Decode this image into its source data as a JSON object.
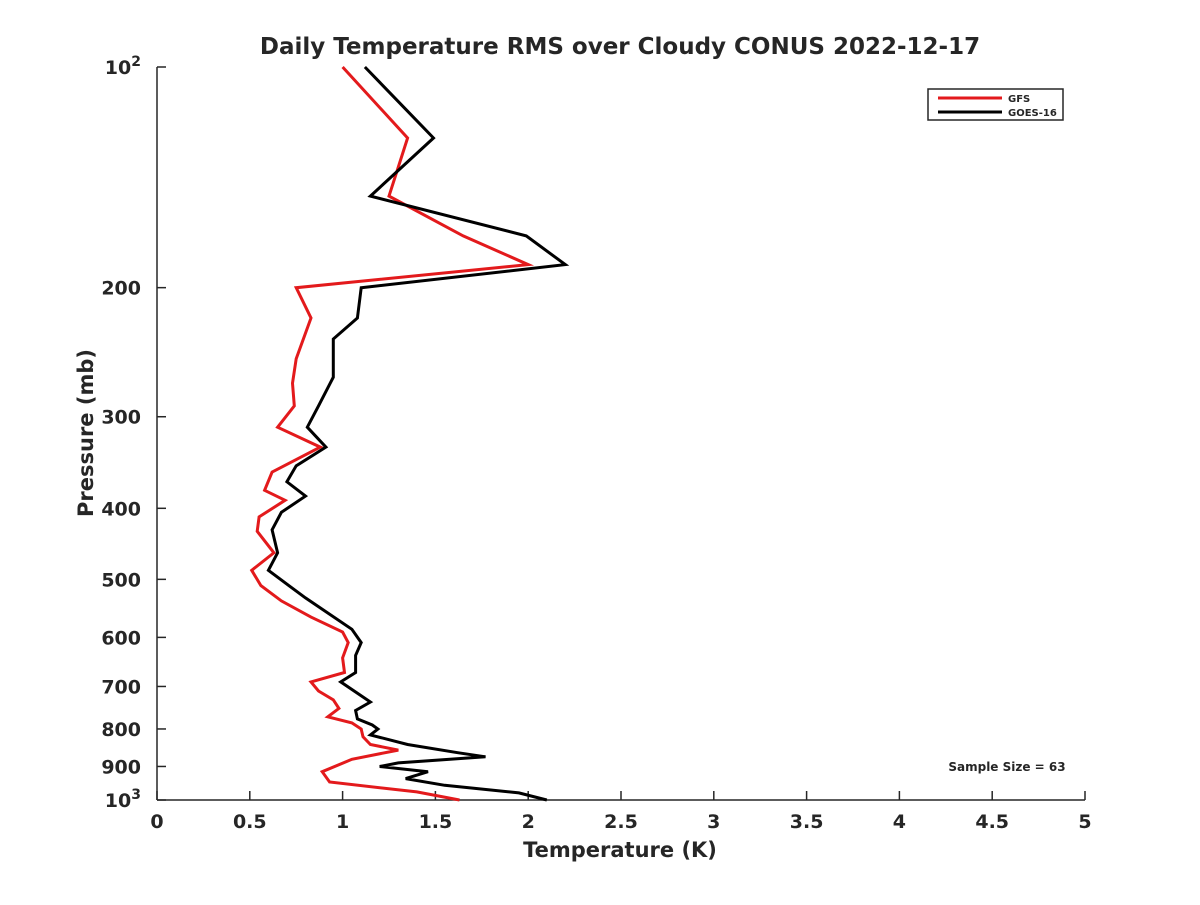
{
  "chart_data": {
    "type": "line",
    "title": "Daily Temperature RMS over Cloudy CONUS 2022-12-17",
    "xlabel": "Temperature (K)",
    "ylabel": "Pressure (mb)",
    "xlim": [
      0,
      5
    ],
    "ylim": [
      100,
      1000
    ],
    "y_scale": "log",
    "y_reversed": true,
    "x_ticks": [
      "0",
      "0.5",
      "1",
      "1.5",
      "2",
      "2.5",
      "3",
      "3.5",
      "4",
      "4.5",
      "5"
    ],
    "y_ticks": [
      {
        "value": 100,
        "base": "10",
        "exp": "2",
        "label": ""
      },
      {
        "value": 200,
        "label": "200"
      },
      {
        "value": 300,
        "label": "300"
      },
      {
        "value": 400,
        "label": "400"
      },
      {
        "value": 500,
        "label": "500"
      },
      {
        "value": 600,
        "label": "600"
      },
      {
        "value": 700,
        "label": "700"
      },
      {
        "value": 800,
        "label": "800"
      },
      {
        "value": 900,
        "label": "900"
      },
      {
        "value": 1000,
        "base": "10",
        "exp": "3",
        "label": ""
      }
    ],
    "grid": false,
    "legend_position": "top-right",
    "annotation": "Sample Size = 63",
    "series": [
      {
        "name": "GFS",
        "color": "#e31a1c",
        "points": [
          {
            "x": 1.0,
            "y": 100
          },
          {
            "x": 1.35,
            "y": 125
          },
          {
            "x": 1.25,
            "y": 150
          },
          {
            "x": 1.65,
            "y": 170
          },
          {
            "x": 2.0,
            "y": 186
          },
          {
            "x": 0.75,
            "y": 200
          },
          {
            "x": 0.83,
            "y": 220
          },
          {
            "x": 0.75,
            "y": 250
          },
          {
            "x": 0.73,
            "y": 270
          },
          {
            "x": 0.74,
            "y": 290
          },
          {
            "x": 0.65,
            "y": 310
          },
          {
            "x": 0.88,
            "y": 330
          },
          {
            "x": 0.62,
            "y": 357
          },
          {
            "x": 0.58,
            "y": 378
          },
          {
            "x": 0.69,
            "y": 390
          },
          {
            "x": 0.55,
            "y": 411
          },
          {
            "x": 0.54,
            "y": 430
          },
          {
            "x": 0.63,
            "y": 460
          },
          {
            "x": 0.51,
            "y": 486
          },
          {
            "x": 0.56,
            "y": 510
          },
          {
            "x": 0.67,
            "y": 535
          },
          {
            "x": 0.83,
            "y": 563
          },
          {
            "x": 1.0,
            "y": 590
          },
          {
            "x": 1.03,
            "y": 610
          },
          {
            "x": 1.0,
            "y": 640
          },
          {
            "x": 1.01,
            "y": 670
          },
          {
            "x": 0.83,
            "y": 690
          },
          {
            "x": 0.87,
            "y": 710
          },
          {
            "x": 0.95,
            "y": 730
          },
          {
            "x": 0.98,
            "y": 750
          },
          {
            "x": 0.92,
            "y": 770
          },
          {
            "x": 1.05,
            "y": 785
          },
          {
            "x": 1.1,
            "y": 800
          },
          {
            "x": 1.11,
            "y": 820
          },
          {
            "x": 1.15,
            "y": 840
          },
          {
            "x": 1.3,
            "y": 855
          },
          {
            "x": 1.05,
            "y": 880
          },
          {
            "x": 0.89,
            "y": 915
          },
          {
            "x": 0.93,
            "y": 945
          },
          {
            "x": 1.4,
            "y": 975
          },
          {
            "x": 1.63,
            "y": 1000
          }
        ]
      },
      {
        "name": "GOES-16",
        "color": "#000000",
        "points": [
          {
            "x": 1.12,
            "y": 100
          },
          {
            "x": 1.49,
            "y": 125
          },
          {
            "x": 1.15,
            "y": 150
          },
          {
            "x": 1.99,
            "y": 170
          },
          {
            "x": 2.2,
            "y": 186
          },
          {
            "x": 1.1,
            "y": 200
          },
          {
            "x": 1.08,
            "y": 220
          },
          {
            "x": 0.95,
            "y": 235
          },
          {
            "x": 0.95,
            "y": 265
          },
          {
            "x": 0.87,
            "y": 290
          },
          {
            "x": 0.81,
            "y": 310
          },
          {
            "x": 0.91,
            "y": 330
          },
          {
            "x": 0.75,
            "y": 350
          },
          {
            "x": 0.7,
            "y": 368
          },
          {
            "x": 0.8,
            "y": 385
          },
          {
            "x": 0.67,
            "y": 405
          },
          {
            "x": 0.62,
            "y": 428
          },
          {
            "x": 0.65,
            "y": 460
          },
          {
            "x": 0.6,
            "y": 486
          },
          {
            "x": 0.71,
            "y": 510
          },
          {
            "x": 0.8,
            "y": 530
          },
          {
            "x": 1.05,
            "y": 585
          },
          {
            "x": 1.1,
            "y": 610
          },
          {
            "x": 1.07,
            "y": 635
          },
          {
            "x": 1.07,
            "y": 670
          },
          {
            "x": 0.99,
            "y": 690
          },
          {
            "x": 1.15,
            "y": 735
          },
          {
            "x": 1.07,
            "y": 755
          },
          {
            "x": 1.08,
            "y": 775
          },
          {
            "x": 1.16,
            "y": 790
          },
          {
            "x": 1.19,
            "y": 800
          },
          {
            "x": 1.15,
            "y": 815
          },
          {
            "x": 1.35,
            "y": 840
          },
          {
            "x": 1.62,
            "y": 862
          },
          {
            "x": 1.77,
            "y": 873
          },
          {
            "x": 1.3,
            "y": 890
          },
          {
            "x": 1.2,
            "y": 900
          },
          {
            "x": 1.46,
            "y": 915
          },
          {
            "x": 1.34,
            "y": 935
          },
          {
            "x": 1.55,
            "y": 955
          },
          {
            "x": 1.95,
            "y": 978
          },
          {
            "x": 2.1,
            "y": 1000
          }
        ]
      }
    ]
  }
}
